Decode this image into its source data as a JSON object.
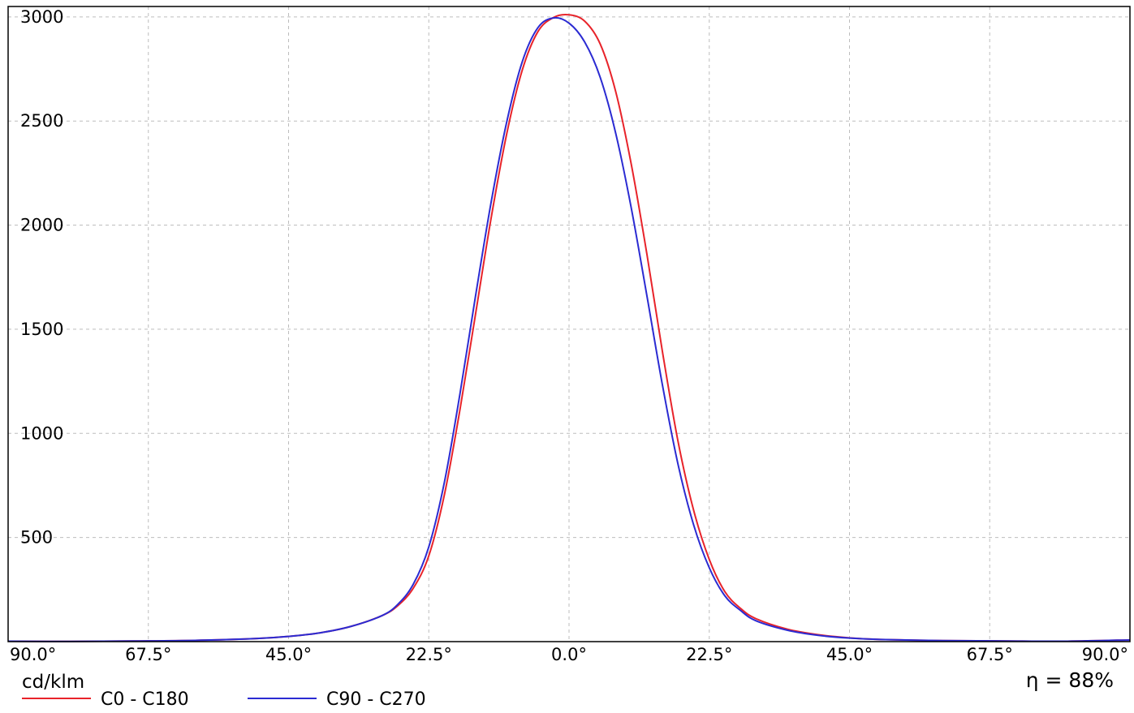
{
  "colors": {
    "background": "#ffffff",
    "axis": "#000000",
    "grid": "#bdbdbd",
    "c0_c180": "#e8232a",
    "c90_c270": "#2b2bd2"
  },
  "unit_label": "cd/klm",
  "efficiency_label": "η = 88%",
  "chart_data": {
    "type": "line",
    "xlabel": "",
    "ylabel": "",
    "x_tick_labels": [
      "90.0°",
      "67.5°",
      "45.0°",
      "22.5°",
      "0.0°",
      "22.5°",
      "45.0°",
      "67.5°",
      "90.0°"
    ],
    "xlim": [
      -90,
      90
    ],
    "y_ticks": [
      500,
      1000,
      1500,
      2000,
      2500,
      3000
    ],
    "ylim": [
      0,
      3050
    ],
    "grid": true,
    "legend_position": "bottom-left",
    "x": [
      -90,
      -80,
      -70,
      -60,
      -50,
      -45,
      -40,
      -35,
      -30,
      -27.5,
      -25,
      -22.5,
      -20,
      -17.5,
      -15,
      -12.5,
      -10,
      -7.5,
      -5,
      -2.5,
      0,
      2.5,
      5,
      7.5,
      10,
      12.5,
      15,
      17.5,
      20,
      22.5,
      25,
      27.5,
      30,
      35,
      40,
      45,
      50,
      60,
      70,
      80,
      90
    ],
    "series": [
      {
        "name": "C0 - C180",
        "values": [
          2,
          1,
          3,
          6,
          15,
          25,
          42,
          73,
          125,
          172,
          256,
          412,
          705,
          1114,
          1573,
          2034,
          2438,
          2745,
          2929,
          2997,
          3010,
          2980,
          2870,
          2640,
          2290,
          1860,
          1390,
          960,
          630,
          395,
          240,
          160,
          110,
          60,
          33,
          18,
          10,
          5,
          3,
          2,
          8
        ]
      },
      {
        "name": "C90 - C270",
        "values": [
          2,
          1,
          3,
          6,
          15,
          25,
          42,
          73,
          125,
          178,
          275,
          455,
          765,
          1190,
          1660,
          2110,
          2495,
          2785,
          2948,
          2995,
          2970,
          2880,
          2710,
          2440,
          2080,
          1660,
          1230,
          850,
          560,
          355,
          220,
          150,
          100,
          55,
          30,
          17,
          10,
          5,
          3,
          2,
          8
        ]
      }
    ]
  }
}
